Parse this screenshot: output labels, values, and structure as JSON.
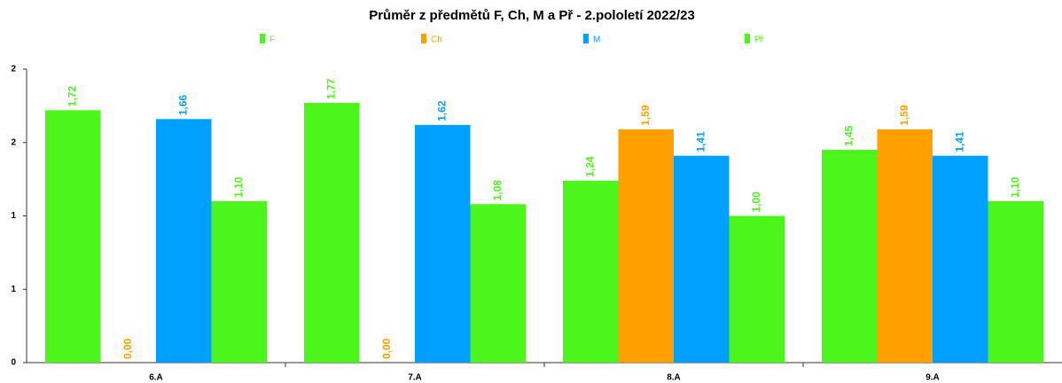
{
  "chart_data": {
    "type": "bar",
    "title": "Průměr z předmětů F, Ch, M a Př - 2.pololetí 2022/23",
    "categories": [
      "6.A",
      "7.A",
      "8.A",
      "9.A"
    ],
    "series": [
      {
        "name": "F",
        "color": "#4cf51c",
        "values": [
          1.72,
          1.77,
          1.24,
          1.45
        ],
        "value_labels": [
          "1,72",
          "1,77",
          "1,24",
          "1,45"
        ]
      },
      {
        "name": "Ch",
        "color": "#ff9f00",
        "values": [
          0,
          0,
          1.59,
          1.59
        ],
        "value_labels": [
          "0,00",
          "0,00",
          "1,59",
          "1,59"
        ]
      },
      {
        "name": "M",
        "color": "#00a0ff",
        "values": [
          1.66,
          1.62,
          1.41,
          1.41
        ],
        "value_labels": [
          "1,66",
          "1,62",
          "1,41",
          "1,41"
        ]
      },
      {
        "name": "Př",
        "color": "#4cf51c",
        "values": [
          1.1,
          1.08,
          1.0,
          1.1
        ],
        "value_labels": [
          "1,10",
          "1,08",
          "1,00",
          "1,10"
        ]
      }
    ],
    "ylim": [
      0,
      2
    ],
    "yticks": [
      0,
      {
        "value": 0.5,
        "label": "1"
      },
      1,
      {
        "value": 1.5,
        "label": "2"
      },
      2
    ],
    "legend": "top"
  }
}
